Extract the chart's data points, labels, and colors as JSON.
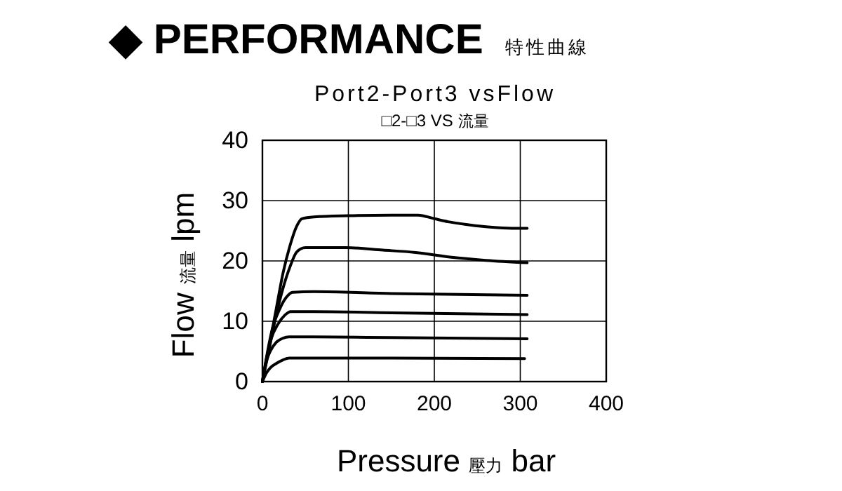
{
  "chart_data": {
    "type": "line",
    "title": "Port2-Port3 vsFlow",
    "subtitle": "□2-□3 VS 流量",
    "annotations": [
      "◆ PERFORMANCE",
      "特性曲線"
    ],
    "xlabel": "Pressure 壓力 bar",
    "ylabel": "Flow 流量 lpm",
    "xlim": [
      0,
      400
    ],
    "xticks": [
      0,
      100,
      200,
      300,
      400
    ],
    "ylim": [
      0,
      40
    ],
    "yticks": [
      0,
      10,
      20,
      30,
      40
    ],
    "grid": true,
    "marker": "none",
    "line_style": "solid",
    "series": [
      {
        "color": "#000000",
        "x": [
          0,
          8,
          16,
          24,
          32,
          40,
          46,
          60,
          100,
          150,
          181,
          200,
          216,
          240,
          265,
          290,
          308
        ],
        "values": [
          0,
          6,
          12,
          18,
          22.5,
          25.8,
          27,
          27.3,
          27.5,
          27.6,
          27.6,
          27,
          26.5,
          26,
          25.6,
          25.4,
          25.4
        ]
      },
      {
        "color": "#000000",
        "x": [
          0,
          8,
          16,
          24,
          32,
          40,
          50,
          97,
          140,
          178,
          220,
          260,
          308
        ],
        "values": [
          0,
          5.5,
          11,
          15.5,
          19,
          21.5,
          22.2,
          22.2,
          21.8,
          21.4,
          20.6,
          20.1,
          19.7
        ]
      },
      {
        "color": "#000000",
        "x": [
          0,
          6,
          12,
          20,
          28,
          35,
          60,
          150,
          308
        ],
        "values": [
          0,
          5,
          9,
          12,
          14,
          14.8,
          14.9,
          14.6,
          14.3
        ]
      },
      {
        "color": "#000000",
        "x": [
          0,
          5,
          10,
          18,
          26,
          33,
          60,
          150,
          308
        ],
        "values": [
          0,
          4,
          7,
          9.5,
          11,
          11.6,
          11.6,
          11.4,
          11.1
        ]
      },
      {
        "color": "#000000",
        "x": [
          0,
          4,
          9,
          16,
          24,
          31,
          60,
          150,
          308
        ],
        "values": [
          0,
          3,
          5,
          6.5,
          7.2,
          7.4,
          7.4,
          7.3,
          7.1
        ]
      },
      {
        "color": "#000000",
        "x": [
          0,
          5,
          10,
          16,
          24,
          31,
          60,
          150,
          305
        ],
        "values": [
          0,
          1.5,
          2.4,
          3,
          3.6,
          3.9,
          3.9,
          3.9,
          3.8
        ]
      }
    ]
  }
}
